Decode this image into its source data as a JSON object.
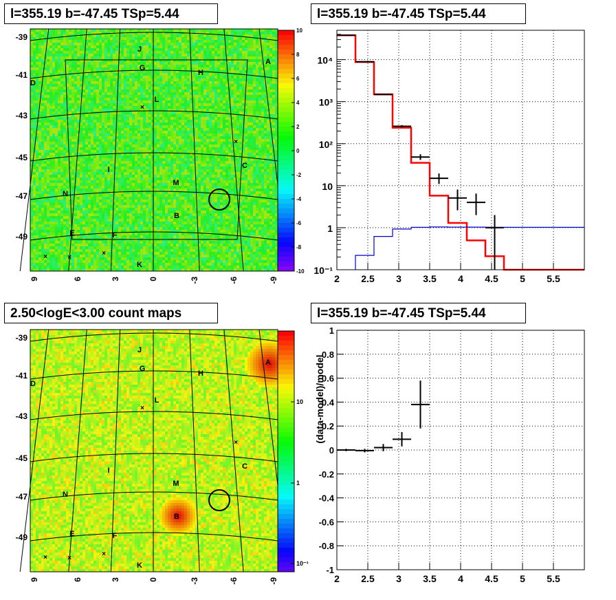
{
  "panels": {
    "tl_title": "l=355.19 b=-47.45 TSp=5.44",
    "tr_title": "l=355.19 b=-47.45 TSp=5.44",
    "bl_title": "2.50<logE<3.00 count maps",
    "br_title": "l=355.19 b=-47.45 TSp=5.44"
  },
  "sky_map": {
    "lat_labels": [
      "-39",
      "-41",
      "-43",
      "-45",
      "-47",
      "-49"
    ],
    "lon_labels": [
      "9",
      "6",
      "3",
      "0",
      "-3",
      "-6",
      "-9"
    ],
    "sources": [
      {
        "name": "A"
      },
      {
        "name": "B"
      },
      {
        "name": "C"
      },
      {
        "name": "D"
      },
      {
        "name": "E"
      },
      {
        "name": "F"
      },
      {
        "name": "G"
      },
      {
        "name": "H"
      },
      {
        "name": "I"
      },
      {
        "name": "J"
      },
      {
        "name": "K"
      },
      {
        "name": "L"
      },
      {
        "name": "M"
      },
      {
        "name": "N"
      }
    ],
    "residual_colorbar_ticks": [
      "10",
      "8",
      "6",
      "4",
      "2",
      "0",
      "-2",
      "-4",
      "-6",
      "-8",
      "-10"
    ],
    "count_colorbar_ticks": [
      "10",
      "1",
      "10⁻¹"
    ]
  },
  "chart_data": [
    {
      "type": "line",
      "yscale": "log",
      "xlim": [
        2,
        6
      ],
      "ylim": [
        0.1,
        50000
      ],
      "x_ticks": [
        "2",
        "2.5",
        "3",
        "3.5",
        "4",
        "4.5",
        "5",
        "5.5"
      ],
      "y_ticks": [
        "10⁻¹",
        "1",
        "10",
        "10²",
        "10³",
        "10⁴"
      ],
      "grid": true,
      "series": [
        {
          "style": "red-histogram",
          "edges": [
            2,
            2.3,
            2.6,
            2.9,
            3.2,
            3.5,
            3.8,
            4.1,
            4.4,
            4.7,
            5.0,
            6.0
          ],
          "values": [
            38000,
            8800,
            1500,
            240,
            35,
            5.8,
            1.3,
            0.5,
            0.21,
            0.1,
            0.1
          ]
        },
        {
          "style": "blue-histogram",
          "edges": [
            2.3,
            2.6,
            2.9,
            3.2,
            3.5,
            3.8,
            4.1,
            4.4,
            4.7,
            5.0,
            6.0
          ],
          "values": [
            0.22,
            0.62,
            0.93,
            1.02,
            1.04,
            1.03,
            1.03,
            1.02,
            1.02,
            1.02
          ]
        },
        {
          "style": "black-points",
          "x": [
            2.15,
            2.45,
            2.75,
            3.05,
            3.35,
            3.65,
            3.95,
            4.25,
            4.55
          ],
          "y": [
            38000,
            8900,
            1480,
            260,
            48,
            15,
            5.1,
            4.0,
            1.0
          ],
          "xerr": [
            0.15,
            0.15,
            0.15,
            0.15,
            0.15,
            0.15,
            0.15,
            0.15,
            0.15
          ],
          "yerr_lo": [
            200,
            90,
            40,
            17,
            7,
            4,
            2.5,
            2.0,
            0.9
          ],
          "yerr_hi": [
            200,
            90,
            40,
            17,
            8,
            4.5,
            3,
            2.5,
            1.0
          ]
        }
      ]
    },
    {
      "type": "scatter",
      "ylabel": "(data-model)/model",
      "xlim": [
        2,
        6
      ],
      "ylim": [
        -1,
        1
      ],
      "x_ticks": [
        "2",
        "2.5",
        "3",
        "3.5",
        "4",
        "4.5",
        "5",
        "5.5"
      ],
      "y_ticks": [
        "1",
        "0.8",
        "0.6",
        "0.4",
        "0.2",
        "0",
        "-0.2",
        "-0.4",
        "-0.6",
        "-0.8",
        "-1"
      ],
      "grid": true,
      "series": [
        {
          "x": [
            2.15,
            2.45,
            2.75,
            3.05,
            3.35
          ],
          "y": [
            0.0,
            -0.005,
            0.02,
            0.09,
            0.38
          ],
          "xerr": [
            0.15,
            0.15,
            0.15,
            0.15,
            0.15
          ],
          "yerr": [
            0.01,
            0.015,
            0.03,
            0.06,
            0.2
          ]
        }
      ]
    }
  ]
}
